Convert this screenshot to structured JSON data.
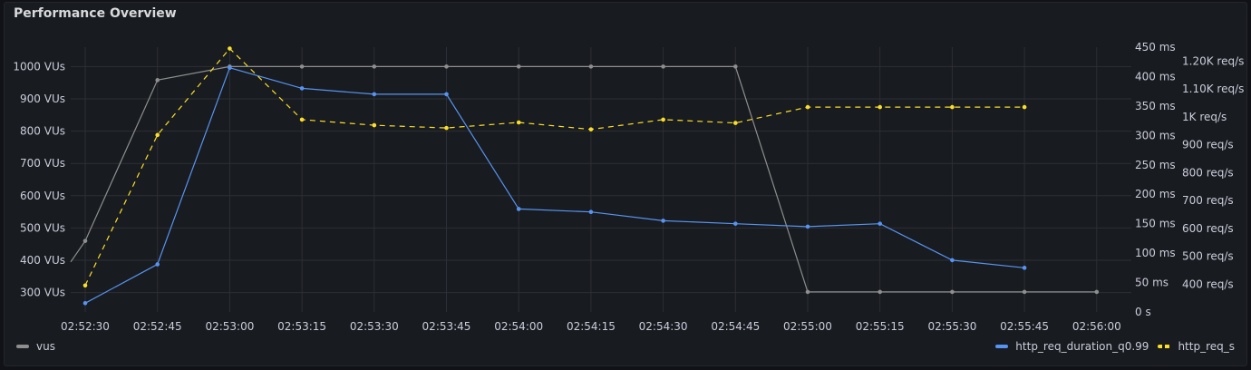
{
  "panel": {
    "title": "Performance Overview"
  },
  "chart_data": {
    "type": "line",
    "x": [
      "02:52:30",
      "02:52:45",
      "02:53:00",
      "02:53:15",
      "02:53:30",
      "02:53:45",
      "02:54:00",
      "02:54:15",
      "02:54:30",
      "02:54:45",
      "02:55:00",
      "02:55:15",
      "02:55:30",
      "02:55:45",
      "02:56:00"
    ],
    "x_ticks": [
      "02:52:30",
      "02:52:45",
      "02:53:00",
      "02:53:15",
      "02:53:30",
      "02:53:45",
      "02:54:00",
      "02:54:15",
      "02:54:30",
      "02:54:45",
      "02:55:00",
      "02:55:15",
      "02:55:30",
      "02:55:45",
      "02:56:00"
    ],
    "axes": {
      "left": {
        "unit": "VUs",
        "range": [
          240,
          1060
        ],
        "ticks": [
          "300 VUs",
          "400 VUs",
          "500 VUs",
          "600 VUs",
          "700 VUs",
          "800 VUs",
          "900 VUs",
          "1000 VUs"
        ],
        "tick_values": [
          300,
          400,
          500,
          600,
          700,
          800,
          900,
          1000
        ]
      },
      "right_inner": {
        "unit": "ms",
        "range": [
          0,
          450
        ],
        "ticks": [
          "0 s",
          "50 ms",
          "100 ms",
          "150 ms",
          "200 ms",
          "250 ms",
          "300 ms",
          "350 ms",
          "400 ms",
          "450 ms"
        ],
        "tick_values": [
          0,
          50,
          100,
          150,
          200,
          250,
          300,
          350,
          400,
          450
        ]
      },
      "right_outer": {
        "unit": "req/s",
        "range": [
          300,
          1250
        ],
        "ticks": [
          "400 req/s",
          "500 req/s",
          "600 req/s",
          "700 req/s",
          "800 req/s",
          "900 req/s",
          "1K req/s",
          "1.10K req/s",
          "1.20K req/s"
        ],
        "tick_values": [
          400,
          500,
          600,
          700,
          800,
          900,
          1000,
          1100,
          1200
        ]
      }
    },
    "grid": true,
    "legend_placement": "bottom",
    "series": [
      {
        "name": "vus",
        "axis": "left",
        "color": "#8e8e8e",
        "style": "solid",
        "lead_in": 395,
        "values": [
          460,
          958,
          1000,
          1000,
          1000,
          1000,
          1000,
          1000,
          1000,
          1000,
          302,
          302,
          302,
          302,
          302
        ]
      },
      {
        "name": "http_req_duration_q0.99",
        "axis": "right_inner",
        "color": "#5794f2",
        "style": "solid",
        "values": [
          15,
          81,
          415,
          380,
          370,
          370,
          175,
          170,
          155,
          150,
          145,
          150,
          88,
          75,
          null
        ]
      },
      {
        "name": "http_req_s",
        "axis": "right_outer",
        "color": "#fade2a",
        "style": "dashed",
        "values": [
          395,
          935,
          1245,
          990,
          970,
          960,
          980,
          955,
          990,
          978,
          1035,
          1035,
          1035,
          1035,
          null
        ]
      }
    ]
  }
}
